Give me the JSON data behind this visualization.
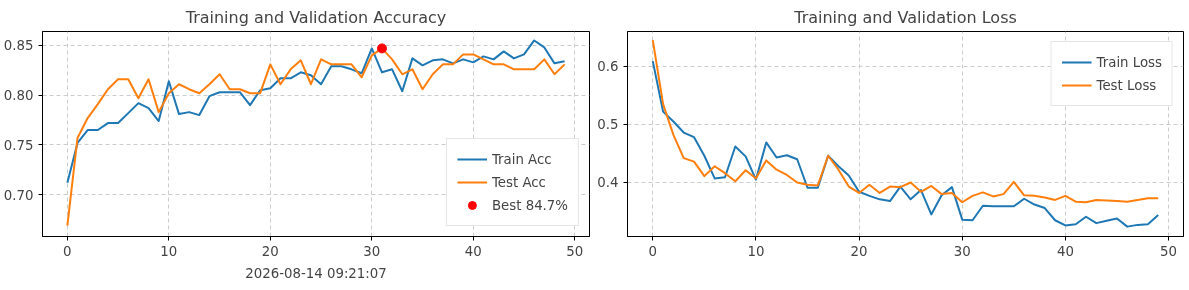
{
  "chart_data": [
    {
      "type": "line",
      "title": "Training and Validation Accuracy",
      "annotations": [
        "2026-08-14 09:21:07"
      ],
      "x": [
        0,
        1,
        2,
        3,
        4,
        5,
        6,
        7,
        8,
        9,
        10,
        11,
        12,
        13,
        14,
        15,
        16,
        17,
        18,
        19,
        20,
        21,
        22,
        23,
        24,
        25,
        26,
        27,
        28,
        29,
        30,
        31,
        32,
        33,
        34,
        35,
        36,
        37,
        38,
        39,
        40,
        41,
        42,
        43,
        44,
        45,
        46,
        47,
        48,
        49
      ],
      "series": [
        {
          "name": "Train Acc",
          "color": "#1f77b4",
          "values": [
            0.712,
            0.752,
            0.765,
            0.765,
            0.772,
            0.772,
            0.782,
            0.792,
            0.787,
            0.774,
            0.814,
            0.781,
            0.783,
            0.78,
            0.799,
            0.803,
            0.803,
            0.803,
            0.79,
            0.805,
            0.807,
            0.817,
            0.817,
            0.823,
            0.82,
            0.811,
            0.829,
            0.829,
            0.826,
            0.822,
            0.847,
            0.823,
            0.826,
            0.804,
            0.837,
            0.83,
            0.835,
            0.836,
            0.832,
            0.836,
            0.833,
            0.839,
            0.836,
            0.844,
            0.837,
            0.841,
            0.855,
            0.848,
            0.832,
            0.834
          ]
        },
        {
          "name": "Test Acc",
          "color": "#ff7f0e",
          "values": [
            0.669,
            0.757,
            0.777,
            0.791,
            0.806,
            0.816,
            0.816,
            0.797,
            0.816,
            0.783,
            0.802,
            0.811,
            0.806,
            0.802,
            0.811,
            0.821,
            0.806,
            0.806,
            0.802,
            0.802,
            0.831,
            0.811,
            0.826,
            0.835,
            0.811,
            0.836,
            0.831,
            0.831,
            0.831,
            0.818,
            0.84,
            0.847,
            0.836,
            0.821,
            0.826,
            0.806,
            0.821,
            0.831,
            0.831,
            0.841,
            0.841,
            0.836,
            0.831,
            0.831,
            0.826,
            0.826,
            0.826,
            0.836,
            0.821,
            0.831
          ]
        },
        {
          "name": "Best 84.7%",
          "type": "scatter",
          "marker": "circle",
          "color": "#ff0000",
          "x": [
            31
          ],
          "values": [
            0.847
          ]
        }
      ],
      "xlim": [
        -2.45,
        51.45
      ],
      "ylim": [
        0.658,
        0.864
      ],
      "xticks": [
        0,
        10,
        20,
        30,
        40,
        50
      ],
      "yticks": [
        {
          "value": 0.7,
          "label": "0.70"
        },
        0.75,
        {
          "value": 0.8,
          "label": "0.80"
        },
        0.85
      ],
      "grid": true,
      "legend": "bottom right",
      "line_style": "solid"
    },
    {
      "type": "line",
      "title": "Training and Validation Loss",
      "x": [
        0,
        1,
        2,
        3,
        4,
        5,
        6,
        7,
        8,
        9,
        10,
        11,
        12,
        13,
        14,
        15,
        16,
        17,
        18,
        19,
        20,
        21,
        22,
        23,
        24,
        25,
        26,
        27,
        28,
        29,
        30,
        31,
        32,
        33,
        34,
        35,
        36,
        37,
        38,
        39,
        40,
        41,
        42,
        43,
        44,
        45,
        46,
        47,
        48,
        49
      ],
      "series": [
        {
          "name": "Train Loss",
          "color": "#1f77b4",
          "values": [
            0.609,
            0.522,
            0.505,
            0.486,
            0.478,
            0.446,
            0.407,
            0.409,
            0.462,
            0.445,
            0.405,
            0.469,
            0.443,
            0.447,
            0.44,
            0.391,
            0.391,
            0.446,
            0.428,
            0.412,
            0.384,
            0.377,
            0.371,
            0.368,
            0.393,
            0.371,
            0.387,
            0.345,
            0.378,
            0.392,
            0.336,
            0.335,
            0.36,
            0.359,
            0.359,
            0.359,
            0.372,
            0.362,
            0.356,
            0.335,
            0.326,
            0.328,
            0.341,
            0.33,
            0.334,
            0.338,
            0.324,
            0.327,
            0.328,
            0.344
          ]
        },
        {
          "name": "Test Loss",
          "color": "#ff7f0e",
          "values": [
            0.645,
            0.535,
            0.482,
            0.442,
            0.436,
            0.411,
            0.428,
            0.416,
            0.402,
            0.421,
            0.407,
            0.438,
            0.422,
            0.413,
            0.4,
            0.396,
            0.395,
            0.446,
            0.422,
            0.393,
            0.382,
            0.396,
            0.382,
            0.393,
            0.392,
            0.4,
            0.384,
            0.394,
            0.38,
            0.382,
            0.366,
            0.377,
            0.383,
            0.376,
            0.38,
            0.401,
            0.378,
            0.377,
            0.374,
            0.37,
            0.377,
            0.367,
            0.366,
            0.37,
            0.369,
            0.368,
            0.367,
            0.37,
            0.373,
            0.373
          ]
        }
      ],
      "xlim": [
        -2.45,
        51.45
      ],
      "ylim": [
        0.307,
        0.66
      ],
      "xticks": [
        0,
        10,
        20,
        30,
        40,
        50
      ],
      "yticks": [
        0.4,
        0.5,
        0.6
      ],
      "grid": true,
      "legend": "top right",
      "line_style": "solid"
    }
  ]
}
